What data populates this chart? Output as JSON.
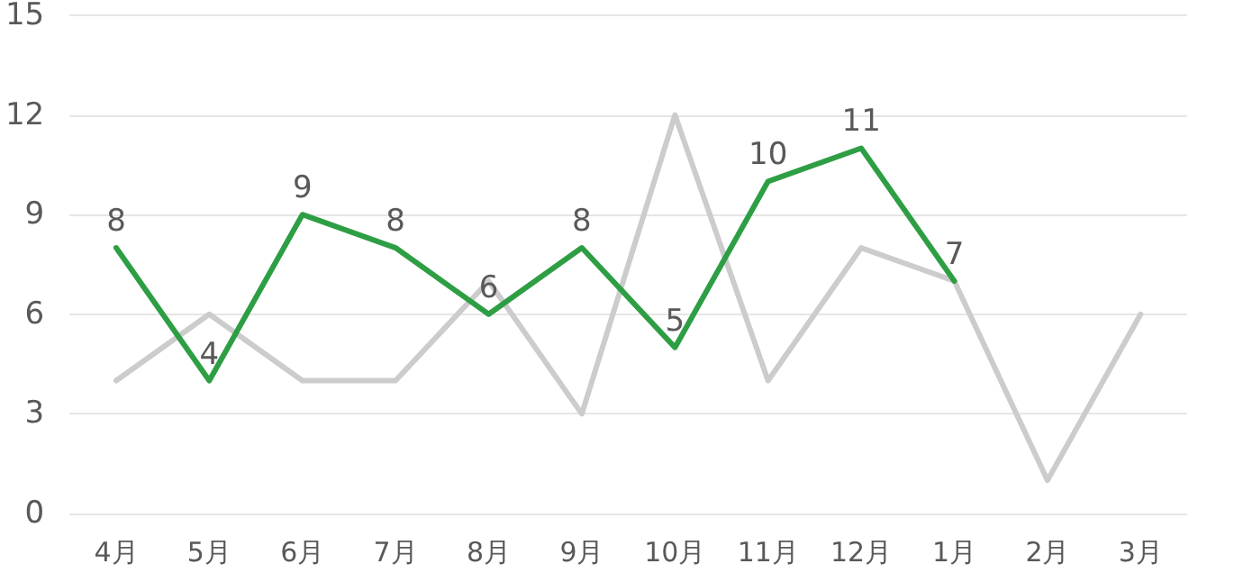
{
  "chart_data": {
    "type": "line",
    "categories": [
      "4月",
      "5月",
      "6月",
      "7月",
      "8月",
      "9月",
      "10月",
      "11月",
      "12月",
      "1月",
      "2月",
      "3月"
    ],
    "series": [
      {
        "color": "#cccccc",
        "values": [
          4,
          6,
          4,
          4,
          7,
          3,
          12,
          4,
          8,
          7,
          1,
          6
        ]
      },
      {
        "color": "#2e9e44",
        "values": [
          8,
          4,
          9,
          8,
          6,
          8,
          5,
          10,
          11,
          7,
          null,
          null
        ],
        "value_labels": [
          "8",
          "4",
          "9",
          "8",
          "6",
          "8",
          "5",
          "10",
          "11",
          "7",
          null,
          null
        ]
      }
    ],
    "ylim": [
      0,
      15
    ],
    "yticks": [
      0,
      3,
      6,
      9,
      12,
      15
    ],
    "grid": "y",
    "marker": "none",
    "line_style": "solid"
  }
}
